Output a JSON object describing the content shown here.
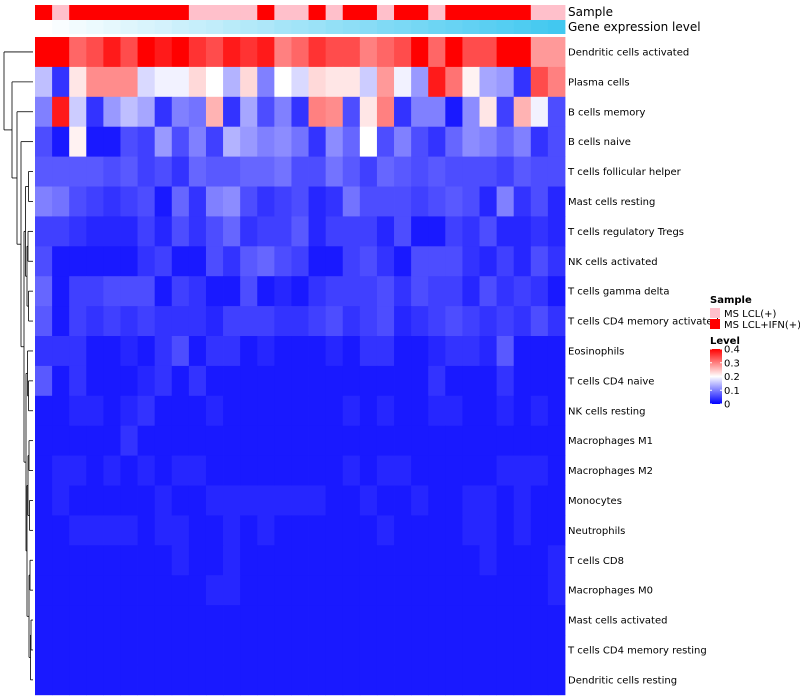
{
  "chart_data": {
    "type": "heatmap",
    "title": "",
    "n_samples": 31,
    "row_labels": [
      "Dendritic cells activated",
      "Plasma cells",
      "B cells memory",
      "B cells naive",
      "T cells follicular helper",
      "Mast cells resting",
      "T cells regulatory  Tregs",
      "NK cells activated",
      "T cells gamma delta",
      "T cells CD4 memory activated",
      "Eosinophils",
      "T cells CD4 naive",
      "NK cells resting",
      "Macrophages M1",
      "Macrophages M2",
      "Monocytes",
      "Neutrophils",
      "T cells CD8",
      "Macrophages M0",
      "Mast cells activated",
      "T cells CD4 memory resting",
      "Dendritic cells resting"
    ],
    "annotation_tracks": [
      "Sample",
      "Gene expression level"
    ],
    "sample_groups": [
      1,
      0,
      1,
      1,
      1,
      1,
      1,
      1,
      1,
      0,
      0,
      0,
      0,
      1,
      0,
      0,
      1,
      0,
      1,
      1,
      0,
      1,
      1,
      0,
      1,
      1,
      1,
      1,
      1,
      0,
      0
    ],
    "gene_expression_level": [
      0.0,
      0.03,
      0.07,
      0.1,
      0.13,
      0.17,
      0.2,
      0.23,
      0.27,
      0.3,
      0.33,
      0.37,
      0.4,
      0.43,
      0.47,
      0.5,
      0.53,
      0.57,
      0.6,
      0.63,
      0.67,
      0.7,
      0.73,
      0.77,
      0.8,
      0.83,
      0.87,
      0.9,
      0.93,
      0.97,
      1.0
    ],
    "values": [
      [
        0.4,
        0.4,
        0.32,
        0.34,
        0.38,
        0.34,
        0.4,
        0.38,
        0.4,
        0.36,
        0.34,
        0.38,
        0.36,
        0.38,
        0.3,
        0.32,
        0.36,
        0.34,
        0.34,
        0.3,
        0.32,
        0.34,
        0.4,
        0.32,
        0.4,
        0.34,
        0.34,
        0.4,
        0.4,
        0.28,
        0.28
      ],
      [
        0.15,
        0.04,
        0.22,
        0.29,
        0.29,
        0.29,
        0.17,
        0.19,
        0.19,
        0.23,
        0.2,
        0.14,
        0.23,
        0.1,
        0.2,
        0.17,
        0.23,
        0.22,
        0.22,
        0.16,
        0.28,
        0.19,
        0.12,
        0.38,
        0.31,
        0.21,
        0.13,
        0.12,
        0.04,
        0.34,
        0.3
      ],
      [
        0.1,
        0.38,
        0.16,
        0.04,
        0.12,
        0.15,
        0.13,
        0.04,
        0.1,
        0.09,
        0.26,
        0.04,
        0.13,
        0.06,
        0.1,
        0.04,
        0.3,
        0.29,
        0.06,
        0.22,
        0.3,
        0.04,
        0.1,
        0.1,
        0.02,
        0.11,
        0.22,
        0.05,
        0.26,
        0.19,
        0.06
      ],
      [
        0.06,
        0.02,
        0.21,
        0.02,
        0.02,
        0.06,
        0.05,
        0.12,
        0.06,
        0.1,
        0.05,
        0.14,
        0.12,
        0.1,
        0.11,
        0.09,
        0.04,
        0.11,
        0.08,
        0.2,
        0.06,
        0.1,
        0.06,
        0.04,
        0.08,
        0.11,
        0.1,
        0.08,
        0.1,
        0.04,
        0.06
      ],
      [
        0.07,
        0.07,
        0.07,
        0.07,
        0.06,
        0.07,
        0.05,
        0.06,
        0.04,
        0.08,
        0.07,
        0.07,
        0.08,
        0.08,
        0.09,
        0.06,
        0.06,
        0.09,
        0.07,
        0.05,
        0.08,
        0.07,
        0.06,
        0.07,
        0.06,
        0.06,
        0.06,
        0.05,
        0.07,
        0.06,
        0.06
      ],
      [
        0.1,
        0.09,
        0.06,
        0.05,
        0.04,
        0.05,
        0.06,
        0.02,
        0.08,
        0.04,
        0.1,
        0.11,
        0.06,
        0.04,
        0.05,
        0.06,
        0.03,
        0.04,
        0.09,
        0.06,
        0.06,
        0.06,
        0.05,
        0.06,
        0.07,
        0.06,
        0.03,
        0.1,
        0.04,
        0.06,
        0.03
      ],
      [
        0.05,
        0.05,
        0.04,
        0.03,
        0.03,
        0.03,
        0.05,
        0.03,
        0.06,
        0.04,
        0.06,
        0.08,
        0.04,
        0.05,
        0.05,
        0.07,
        0.03,
        0.05,
        0.05,
        0.05,
        0.03,
        0.06,
        0.02,
        0.02,
        0.05,
        0.04,
        0.06,
        0.03,
        0.03,
        0.04,
        0.03
      ],
      [
        0.06,
        0.02,
        0.02,
        0.02,
        0.02,
        0.02,
        0.04,
        0.05,
        0.02,
        0.02,
        0.06,
        0.04,
        0.07,
        0.08,
        0.06,
        0.05,
        0.02,
        0.02,
        0.05,
        0.06,
        0.04,
        0.02,
        0.06,
        0.06,
        0.06,
        0.04,
        0.03,
        0.05,
        0.03,
        0.06,
        0.04
      ],
      [
        0.08,
        0.02,
        0.05,
        0.05,
        0.06,
        0.06,
        0.06,
        0.02,
        0.05,
        0.04,
        0.02,
        0.02,
        0.06,
        0.02,
        0.03,
        0.02,
        0.04,
        0.05,
        0.05,
        0.05,
        0.06,
        0.04,
        0.06,
        0.05,
        0.05,
        0.03,
        0.06,
        0.04,
        0.05,
        0.04,
        0.02
      ],
      [
        0.07,
        0.02,
        0.05,
        0.04,
        0.05,
        0.04,
        0.05,
        0.04,
        0.04,
        0.04,
        0.03,
        0.05,
        0.05,
        0.05,
        0.04,
        0.04,
        0.05,
        0.06,
        0.04,
        0.05,
        0.06,
        0.03,
        0.04,
        0.05,
        0.06,
        0.05,
        0.04,
        0.05,
        0.04,
        0.06,
        0.04
      ],
      [
        0.04,
        0.04,
        0.04,
        0.02,
        0.02,
        0.03,
        0.02,
        0.04,
        0.06,
        0.02,
        0.04,
        0.04,
        0.02,
        0.03,
        0.02,
        0.02,
        0.02,
        0.03,
        0.02,
        0.04,
        0.04,
        0.02,
        0.02,
        0.03,
        0.04,
        0.04,
        0.03,
        0.07,
        0.02,
        0.02,
        0.02
      ],
      [
        0.07,
        0.02,
        0.04,
        0.02,
        0.02,
        0.02,
        0.03,
        0.04,
        0.02,
        0.04,
        0.02,
        0.02,
        0.02,
        0.02,
        0.02,
        0.02,
        0.02,
        0.02,
        0.02,
        0.02,
        0.02,
        0.02,
        0.02,
        0.04,
        0.02,
        0.02,
        0.02,
        0.04,
        0.02,
        0.02,
        0.02
      ],
      [
        0.02,
        0.02,
        0.03,
        0.03,
        0.02,
        0.03,
        0.04,
        0.02,
        0.02,
        0.02,
        0.03,
        0.02,
        0.02,
        0.02,
        0.02,
        0.02,
        0.02,
        0.02,
        0.03,
        0.02,
        0.03,
        0.02,
        0.02,
        0.03,
        0.03,
        0.02,
        0.02,
        0.03,
        0.02,
        0.03,
        0.02
      ],
      [
        0.02,
        0.02,
        0.02,
        0.02,
        0.02,
        0.04,
        0.02,
        0.02,
        0.02,
        0.02,
        0.02,
        0.02,
        0.02,
        0.02,
        0.02,
        0.02,
        0.02,
        0.02,
        0.02,
        0.02,
        0.02,
        0.02,
        0.02,
        0.02,
        0.02,
        0.02,
        0.02,
        0.02,
        0.02,
        0.02,
        0.02
      ],
      [
        0.02,
        0.03,
        0.03,
        0.02,
        0.03,
        0.02,
        0.03,
        0.02,
        0.03,
        0.03,
        0.02,
        0.02,
        0.02,
        0.02,
        0.02,
        0.02,
        0.02,
        0.02,
        0.03,
        0.02,
        0.03,
        0.03,
        0.02,
        0.02,
        0.02,
        0.02,
        0.02,
        0.03,
        0.03,
        0.03,
        0.02
      ],
      [
        0.02,
        0.03,
        0.02,
        0.02,
        0.02,
        0.02,
        0.02,
        0.03,
        0.02,
        0.02,
        0.03,
        0.03,
        0.03,
        0.03,
        0.03,
        0.03,
        0.03,
        0.02,
        0.02,
        0.03,
        0.02,
        0.02,
        0.03,
        0.02,
        0.02,
        0.03,
        0.03,
        0.02,
        0.03,
        0.02,
        0.02
      ],
      [
        0.02,
        0.02,
        0.03,
        0.03,
        0.03,
        0.03,
        0.02,
        0.03,
        0.03,
        0.02,
        0.02,
        0.03,
        0.02,
        0.03,
        0.02,
        0.02,
        0.02,
        0.02,
        0.02,
        0.02,
        0.03,
        0.02,
        0.02,
        0.02,
        0.02,
        0.03,
        0.03,
        0.02,
        0.03,
        0.02,
        0.02
      ],
      [
        0.02,
        0.02,
        0.02,
        0.02,
        0.02,
        0.02,
        0.02,
        0.02,
        0.03,
        0.02,
        0.02,
        0.03,
        0.02,
        0.02,
        0.02,
        0.02,
        0.02,
        0.02,
        0.02,
        0.02,
        0.02,
        0.02,
        0.02,
        0.02,
        0.02,
        0.02,
        0.03,
        0.02,
        0.02,
        0.02,
        0.03
      ],
      [
        0.02,
        0.02,
        0.02,
        0.02,
        0.02,
        0.02,
        0.02,
        0.02,
        0.02,
        0.02,
        0.03,
        0.03,
        0.02,
        0.02,
        0.02,
        0.02,
        0.02,
        0.02,
        0.02,
        0.02,
        0.02,
        0.02,
        0.02,
        0.02,
        0.02,
        0.02,
        0.02,
        0.02,
        0.02,
        0.02,
        0.03
      ],
      [
        0.02,
        0.02,
        0.02,
        0.02,
        0.02,
        0.02,
        0.02,
        0.02,
        0.02,
        0.02,
        0.02,
        0.02,
        0.02,
        0.02,
        0.02,
        0.02,
        0.02,
        0.02,
        0.02,
        0.02,
        0.02,
        0.02,
        0.02,
        0.02,
        0.02,
        0.02,
        0.02,
        0.02,
        0.02,
        0.02,
        0.02
      ],
      [
        0.02,
        0.02,
        0.02,
        0.02,
        0.02,
        0.02,
        0.02,
        0.02,
        0.02,
        0.02,
        0.02,
        0.02,
        0.02,
        0.02,
        0.02,
        0.02,
        0.02,
        0.02,
        0.02,
        0.02,
        0.02,
        0.02,
        0.02,
        0.02,
        0.02,
        0.02,
        0.02,
        0.02,
        0.02,
        0.02,
        0.02
      ],
      [
        0.02,
        0.02,
        0.02,
        0.02,
        0.02,
        0.02,
        0.02,
        0.02,
        0.02,
        0.02,
        0.02,
        0.02,
        0.02,
        0.02,
        0.02,
        0.02,
        0.02,
        0.02,
        0.02,
        0.02,
        0.02,
        0.02,
        0.02,
        0.02,
        0.02,
        0.02,
        0.02,
        0.02,
        0.02,
        0.02,
        0.02
      ]
    ],
    "legend": {
      "sample_title": "Sample",
      "sample_items": [
        {
          "label": "MS LCL(+)",
          "color": "#ffc0cb"
        },
        {
          "label": "MS LCL+IFN(+)",
          "color": "#ff0000"
        }
      ],
      "level_title": "Level",
      "level_ticks": [
        0.4,
        0.3,
        0.2,
        0.1,
        0
      ],
      "level_tick_labels": [
        "0.4",
        "0.3",
        "0.2",
        "0.1",
        "0"
      ],
      "level_range": [
        0,
        0.4
      ]
    },
    "colors": {
      "low": "#0000ff",
      "mid": "#ffffff",
      "high": "#ff0000",
      "expr_low": "#ffffff",
      "expr_high": "#42c8f0",
      "dendrogram": "#000000"
    }
  }
}
